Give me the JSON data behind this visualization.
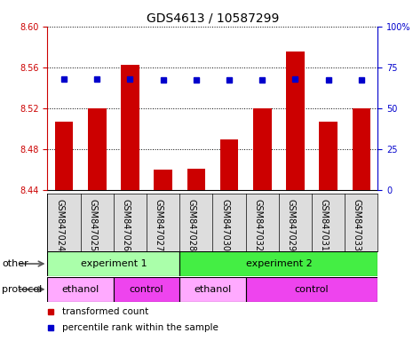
{
  "title": "GDS4613 / 10587299",
  "samples": [
    "GSM847024",
    "GSM847025",
    "GSM847026",
    "GSM847027",
    "GSM847028",
    "GSM847030",
    "GSM847032",
    "GSM847029",
    "GSM847031",
    "GSM847033"
  ],
  "bar_values": [
    8.507,
    8.52,
    8.562,
    8.46,
    8.461,
    8.489,
    8.52,
    8.575,
    8.507,
    8.52
  ],
  "blue_values": [
    68,
    68,
    68,
    67,
    67,
    67,
    67,
    68,
    67,
    67
  ],
  "ylim_left": [
    8.44,
    8.6
  ],
  "ylim_right": [
    0,
    100
  ],
  "yticks_left": [
    8.44,
    8.48,
    8.52,
    8.56,
    8.6
  ],
  "yticks_right": [
    0,
    25,
    50,
    75,
    100
  ],
  "bar_color": "#cc0000",
  "blue_color": "#0000cc",
  "bar_bottom": 8.44,
  "groups_other": [
    {
      "label": "experiment 1",
      "start": 0,
      "end": 4,
      "color": "#aaffaa"
    },
    {
      "label": "experiment 2",
      "start": 4,
      "end": 10,
      "color": "#44ee44"
    }
  ],
  "groups_protocol": [
    {
      "label": "ethanol",
      "start": 0,
      "end": 2,
      "color": "#ffaaff"
    },
    {
      "label": "control",
      "start": 2,
      "end": 4,
      "color": "#ee44ee"
    },
    {
      "label": "ethanol",
      "start": 4,
      "end": 6,
      "color": "#ffaaff"
    },
    {
      "label": "control",
      "start": 6,
      "end": 10,
      "color": "#ee44ee"
    }
  ],
  "legend_items": [
    {
      "label": "transformed count",
      "color": "#cc0000"
    },
    {
      "label": "percentile rank within the sample",
      "color": "#0000cc"
    }
  ],
  "ylabel_left_color": "#cc0000",
  "ylabel_right_color": "#0000cc",
  "title_fontsize": 10,
  "tick_fontsize": 7,
  "label_fontsize": 8,
  "legend_fontsize": 7.5,
  "bg_color": "#ffffff",
  "gray_bg": "#dddddd",
  "border_color": "#000000"
}
